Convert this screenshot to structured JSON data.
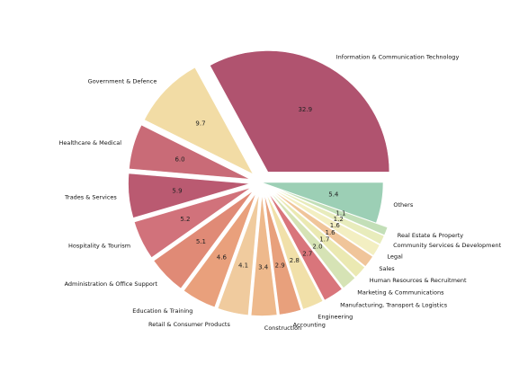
{
  "chart_data": {
    "type": "pie",
    "title": "",
    "start_angle_deg": 0,
    "direction": "counterclockwise",
    "slices": [
      {
        "label": "Information & Communication Technology",
        "value": 32.9,
        "display": "32.9",
        "color": "#b0536f",
        "explode": true
      },
      {
        "label": "Government & Defence",
        "value": 9.7,
        "display": "9.7",
        "color": "#f2dca5",
        "explode": true
      },
      {
        "label": "Healthcare & Medical",
        "value": 6.0,
        "display": "6.0",
        "color": "#c96b77",
        "explode": true
      },
      {
        "label": "Trades & Services",
        "value": 5.9,
        "display": "5.9",
        "color": "#ba5a71",
        "explode": true
      },
      {
        "label": "Hospitality & Tourism",
        "value": 5.2,
        "display": "5.2",
        "color": "#d1727b",
        "explode": true
      },
      {
        "label": "Administration & Office Support",
        "value": 5.1,
        "display": "5.1",
        "color": "#e08a76",
        "explode": true
      },
      {
        "label": "Education & Training",
        "value": 4.6,
        "display": "4.6",
        "color": "#e9a07c",
        "explode": true
      },
      {
        "label": "Retail & Consumer Products",
        "value": 4.1,
        "display": "4.1",
        "color": "#f0cb9e",
        "explode": true
      },
      {
        "label": "Construction",
        "value": 3.4,
        "display": "3.4",
        "color": "#eeb98c",
        "explode": true
      },
      {
        "label": "Accounting",
        "value": 2.9,
        "display": "2.9",
        "color": "#e8a07c",
        "explode": true
      },
      {
        "label": "Engineering",
        "value": 2.8,
        "display": "2.8",
        "color": "#f1e0a9",
        "explode": true
      },
      {
        "label": "Manufacturing, Transport & Logistics",
        "value": 2.7,
        "display": "2.7",
        "color": "#d9757b",
        "explode": true
      },
      {
        "label": "Marketing & Communications",
        "value": 2.0,
        "display": "2.0",
        "color": "#d6e3b5",
        "explode": true
      },
      {
        "label": "Human Resources & Recruitment",
        "value": 1.7,
        "display": "1.7",
        "color": "#ebe9b2",
        "explode": true
      },
      {
        "label": "Sales",
        "value": 1.6,
        "display": "1.6",
        "color": "#f0c59a",
        "explode": true
      },
      {
        "label": "Legal",
        "value": 1.6,
        "display": "1.6",
        "color": "#f3efc2",
        "explode": true
      },
      {
        "label": "Community Services & Development",
        "value": 1.2,
        "display": "1.2",
        "color": "#e8ecbc",
        "explode": true
      },
      {
        "label": "Real Estate & Property",
        "value": 1.1,
        "display": "1.1",
        "color": "#c3dfb8",
        "explode": true
      },
      {
        "label": "Others",
        "value": 5.4,
        "display": "5.4",
        "color": "#9ccfb5",
        "explode": false
      }
    ]
  }
}
